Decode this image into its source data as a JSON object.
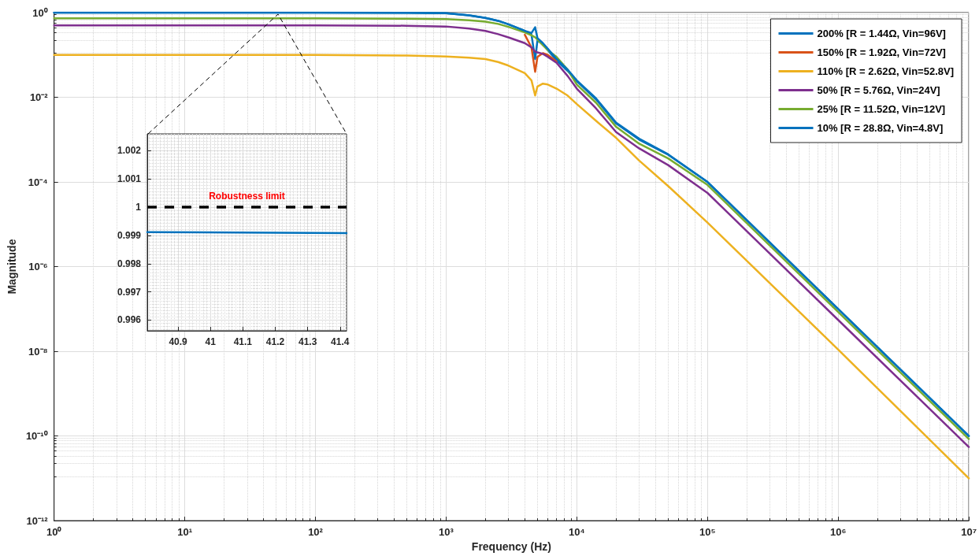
{
  "chart_data": [
    {
      "type": "line",
      "xlabel": "Frequency (Hz)",
      "ylabel": "Magnitude",
      "log": "xy",
      "grid": true,
      "legend": "top right",
      "marker": "none",
      "line_style": "solid",
      "xlim": [
        1,
        10000000
      ],
      "ylim": [
        1e-12,
        1
      ],
      "xticks": [
        {
          "value": 1,
          "label": "10⁰"
        },
        {
          "value": 10,
          "label": "10¹"
        },
        {
          "value": 100,
          "label": "10²"
        },
        {
          "value": 1000,
          "label": "10³"
        },
        {
          "value": 10000,
          "label": "10⁴"
        },
        {
          "value": 100000,
          "label": "10⁵"
        },
        {
          "value": 1000000,
          "label": "10⁶"
        },
        {
          "value": 10000000,
          "label": "10⁷"
        }
      ],
      "yticks": [
        {
          "value": 1e-12,
          "label": "10⁻¹²"
        },
        {
          "value": 1e-10,
          "label": "10⁻¹⁰"
        },
        {
          "value": 1e-08,
          "label": "10⁻⁸"
        },
        {
          "value": 1e-06,
          "label": "10⁻⁶"
        },
        {
          "value": 0.0001,
          "label": "10⁻⁴"
        },
        {
          "value": 0.01,
          "label": "10⁻²"
        },
        {
          "value": 1,
          "label": "10⁰"
        }
      ],
      "x": [
        1,
        10,
        100,
        500,
        1000,
        1500,
        2000,
        2500,
        3000,
        4000,
        4500,
        4800,
        5000,
        5500,
        6000,
        7000,
        8500,
        10000,
        14000,
        20000,
        30000,
        50000,
        100000,
        1000000,
        10000000
      ],
      "series": [
        {
          "name": "200% [R = 1.44Ω, Vin=96V]",
          "color": "#0072bd",
          "values": [
            1,
            1,
            1,
            0.99,
            0.97,
            0.86,
            0.75,
            0.64,
            0.53,
            0.37,
            0.3,
            0.08,
            0.22,
            0.18,
            0.13,
            0.074,
            0.042,
            0.024,
            0.009,
            0.0024,
            0.001,
            0.00044,
            0.0001,
            1e-07,
            1e-10
          ]
        },
        {
          "name": "150% [R = 1.92Ω, Vin=72V]",
          "color": "#d95319",
          "values": [
            null,
            null,
            null,
            null,
            null,
            null,
            null,
            null,
            null,
            0.3,
            0.15,
            0.04,
            0.09,
            0.11,
            0.1,
            0.07,
            null,
            null,
            null,
            null,
            null,
            null,
            null,
            null,
            null
          ]
        },
        {
          "name": "110% [R = 2.62Ω, Vin=52.8V]",
          "color": "#edb120",
          "values": [
            0.1,
            0.1,
            0.1,
            0.097,
            0.092,
            0.086,
            0.08,
            0.068,
            0.056,
            0.037,
            0.025,
            0.011,
            0.018,
            0.021,
            0.02,
            0.016,
            0.011,
            0.0069,
            0.0028,
            0.0011,
            0.00032,
            8e-05,
            1.1e-05,
            1.1e-08,
            1e-11
          ]
        },
        {
          "name": "50% [R = 5.76Ω, Vin=24V]",
          "color": "#7e2f8e",
          "values": [
            0.5,
            0.5,
            0.5,
            0.49,
            0.47,
            0.42,
            0.37,
            0.31,
            0.26,
            0.19,
            0.15,
            0.12,
            0.115,
            0.106,
            0.09,
            0.065,
            0.032,
            0.016,
            0.0055,
            0.0015,
            0.00062,
            0.00025,
            5.5e-05,
            5.5e-08,
            5.5e-11
          ]
        },
        {
          "name": "25% [R = 11.52Ω, Vin=12V]",
          "color": "#77ac30",
          "values": [
            0.73,
            0.73,
            0.73,
            0.72,
            0.7,
            0.66,
            0.61,
            0.54,
            0.46,
            0.34,
            0.29,
            0.26,
            0.23,
            0.17,
            0.13,
            0.09,
            0.045,
            0.02,
            0.0075,
            0.002,
            0.0008,
            0.00036,
            8.5e-05,
            8.5e-08,
            8.5e-11
          ]
        },
        {
          "name": "10% [R = 28.8Ω, Vin=4.8V]",
          "color": "#0072bd",
          "values": [
            1,
            1,
            1,
            0.99,
            0.97,
            0.86,
            0.75,
            0.64,
            0.53,
            0.37,
            0.33,
            0.45,
            0.25,
            0.19,
            0.14,
            0.08,
            0.045,
            0.025,
            0.0095,
            0.0025,
            0.00105,
            0.00045,
            0.0001,
            1e-07,
            1e-10
          ]
        }
      ]
    },
    {
      "type": "line",
      "grid": true,
      "marker": "none",
      "line_style": "solid",
      "xlim": [
        40.805,
        41.42
      ],
      "ylim": [
        0.99562,
        1.0026
      ],
      "xticks": [
        40.9,
        41,
        41.1,
        41.2,
        41.3,
        41.4
      ],
      "yticks": [
        0.996,
        0.997,
        0.998,
        0.999,
        1,
        1.001,
        1.002
      ],
      "ref_lines": [
        {
          "axis": "y",
          "value": 1,
          "label": "Robustness limit",
          "color": "#000000",
          "line_style": "dashed"
        }
      ],
      "series": [
        {
          "color": "#0072bd",
          "x": [
            40.805,
            41.42
          ],
          "values": [
            0.99912,
            0.99908
          ]
        }
      ]
    }
  ]
}
